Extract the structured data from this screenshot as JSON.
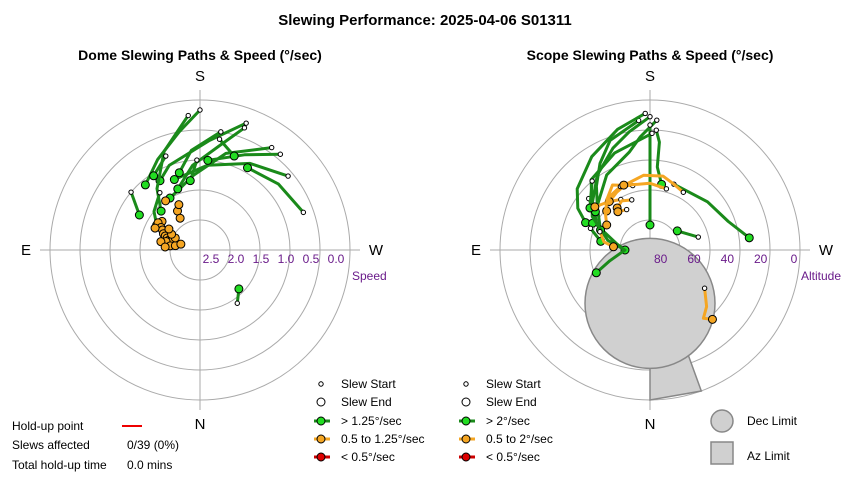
{
  "title": "Slewing Performance: 2025-04-06 S01311",
  "colors": {
    "fast": "#1a8a1a",
    "fast_fill": "#22dd22",
    "mid": "#f5a623",
    "mid_fill": "#f5a623",
    "slow": "#cc0000",
    "slow_fill": "#dd0000",
    "grid": "#aaaaaa",
    "limit_fill": "#d0d0d0",
    "limit_stroke": "#888888",
    "tick": "#6a1b8a",
    "holdup": "#ee0000"
  },
  "dome": {
    "title": "Dome Slewing Paths & Speed (°/sec)",
    "dirs": {
      "top": "S",
      "bottom": "N",
      "left": "E",
      "right": "W"
    },
    "axis_label": "Speed",
    "ticks": [
      {
        "label": "2.5",
        "r": 2.5
      },
      {
        "label": "2.0",
        "r": 2.0
      },
      {
        "label": "1.5",
        "r": 1.5
      },
      {
        "label": "1.0",
        "r": 1.0
      },
      {
        "label": "0.5",
        "r": 0.5
      },
      {
        "label": "0.0",
        "r": 0.0
      }
    ],
    "legend": {
      "start": "Slew Start",
      "end": "Slew End",
      "fast": "> 1.25°/sec",
      "mid": "0.5 to 1.25°/sec",
      "slow": "< 0.5°/sec"
    }
  },
  "scope": {
    "title": "Scope Slewing Paths & Speed (°/sec)",
    "dirs": {
      "top": "S",
      "bottom": "N",
      "left": "E",
      "right": "W"
    },
    "axis_label": "Altitude",
    "ticks": [
      {
        "label": "80",
        "alt": 80
      },
      {
        "label": "60",
        "alt": 60
      },
      {
        "label": "40",
        "alt": 40
      },
      {
        "label": "20",
        "alt": 20
      },
      {
        "label": "0",
        "alt": 0
      }
    ],
    "legend": {
      "start": "Slew Start",
      "end": "Slew End",
      "fast": "> 2°/sec",
      "mid": "0.5 to 2°/sec",
      "slow": "< 0.5°/sec"
    },
    "limits": {
      "dec": "Dec Limit",
      "az": "Az Limit"
    }
  },
  "stats": {
    "holdup_label": "Hold-up point",
    "affected_label": "Slews affected",
    "affected_value": "0/39 (0%)",
    "total_label": "Total hold-up time",
    "total_value": "0.0 mins"
  },
  "chart_data": [
    {
      "type": "scatter",
      "title": "Dome Slewing Paths & Speed (°/sec)",
      "projection": "polar",
      "radial_label": "Speed",
      "radial_range": [
        3.0,
        0.0
      ],
      "compass": [
        "S",
        "W",
        "N",
        "E"
      ],
      "fast_paths": [
        [
          [
            180,
            0.2
          ],
          [
            170,
            0.6
          ],
          [
            155,
            1.0
          ],
          [
            140,
            1.3
          ]
        ],
        [
          [
            200,
            0.3
          ],
          [
            185,
            0.8
          ],
          [
            160,
            1.2
          ],
          [
            150,
            1.4
          ]
        ],
        [
          [
            230,
            0.7
          ],
          [
            210,
            1.0
          ],
          [
            185,
            1.3
          ],
          [
            160,
            1.5
          ]
        ],
        [
          [
            215,
            0.5
          ],
          [
            195,
            1.0
          ],
          [
            175,
            1.5
          ],
          [
            150,
            1.8
          ]
        ],
        [
          [
            200,
            0.4
          ],
          [
            190,
            0.9
          ],
          [
            175,
            1.3
          ],
          [
            160,
            1.7
          ]
        ],
        [
          [
            220,
            0.5
          ],
          [
            205,
            0.9
          ],
          [
            185,
            1.2
          ]
        ],
        [
          [
            250,
            0.8
          ],
          [
            230,
            0.95
          ],
          [
            210,
            1.1
          ]
        ],
        [
          [
            190,
            0.6
          ],
          [
            175,
            1.0
          ],
          [
            165,
            1.4
          ]
        ],
        [
          [
            175,
            0.3
          ],
          [
            160,
            0.9
          ],
          [
            145,
            1.5
          ],
          [
            135,
            1.9
          ]
        ],
        [
          [
            145,
            1.6
          ],
          [
            130,
            1.8
          ],
          [
            120,
            2.0
          ]
        ],
        [
          [
            178,
            1.2
          ],
          [
            172,
            1.6
          ]
        ],
        [
          [
            130,
            1.2
          ],
          [
            120,
            1.6
          ]
        ],
        [
          [
            325,
            1.7
          ],
          [
            315,
            1.9
          ]
        ],
        [
          [
            190,
            0.75
          ],
          [
            200,
            1.0
          ]
        ],
        [
          [
            160,
            1.0
          ],
          [
            148,
            1.25
          ]
        ]
      ],
      "mid_points": [
        [
          127,
          2.05
        ],
        [
          123,
          2.0
        ],
        [
          120,
          2.1
        ],
        [
          118,
          2.15
        ],
        [
          116,
          2.0
        ],
        [
          114,
          2.2
        ],
        [
          112,
          2.25
        ],
        [
          110,
          2.3
        ],
        [
          108,
          2.35
        ],
        [
          113,
          2.4
        ],
        [
          110,
          2.45
        ],
        [
          106,
          2.4
        ],
        [
          104,
          2.3
        ],
        [
          102,
          2.2
        ],
        [
          98,
          2.4
        ],
        [
          100,
          2.5
        ],
        [
          107,
          2.6
        ],
        [
          116,
          2.45
        ],
        [
          119,
          2.35
        ],
        [
          124,
          2.25
        ],
        [
          150,
          2.1
        ],
        [
          148,
          2.25
        ],
        [
          155,
          2.0
        ],
        [
          145,
          1.8
        ],
        [
          95,
          2.3
        ]
      ],
      "slow_paths": []
    },
    {
      "type": "scatter",
      "title": "Scope Slewing Paths & Speed (°/sec)",
      "projection": "polar",
      "radial_label": "Altitude",
      "radial_range": [
        90,
        0
      ],
      "compass": [
        "S",
        "W",
        "N",
        "E"
      ],
      "fast_paths": [
        [
          [
            180,
            10
          ],
          [
            170,
            18
          ],
          [
            160,
            25
          ],
          [
            145,
            35
          ],
          [
            130,
            45
          ],
          [
            115,
            55
          ],
          [
            100,
            70
          ],
          [
            90,
            75
          ]
        ],
        [
          [
            175,
            12
          ],
          [
            160,
            20
          ],
          [
            150,
            30
          ],
          [
            140,
            40
          ],
          [
            128,
            50
          ],
          [
            112,
            58
          ]
        ],
        [
          [
            178,
            8
          ],
          [
            165,
            15
          ],
          [
            148,
            24
          ],
          [
            130,
            33
          ],
          [
            120,
            40
          ],
          [
            113,
            48
          ]
        ],
        [
          [
            183,
            12
          ],
          [
            175,
            22
          ],
          [
            168,
            30
          ],
          [
            150,
            38
          ],
          [
            132,
            48
          ],
          [
            115,
            52
          ]
        ],
        [
          [
            180,
            15
          ],
          [
            180,
            30
          ],
          [
            180,
            45
          ],
          [
            180,
            60
          ],
          [
            180,
            75
          ]
        ],
        [
          [
            183,
            18
          ],
          [
            185,
            25
          ],
          [
            185,
            40
          ],
          [
            190,
            50
          ]
        ],
        [
          [
            181,
            20
          ],
          [
            160,
            28
          ],
          [
            140,
            35
          ],
          [
            120,
            50
          ],
          [
            103,
            64
          ],
          [
            90,
            75
          ],
          [
            75,
            65
          ],
          [
            67,
            55
          ]
        ],
        [
          [
            200,
            48
          ],
          [
            230,
            45
          ],
          [
            250,
            40
          ],
          [
            263,
            30
          ]
        ],
        [
          [
            130,
            42
          ],
          [
            125,
            50
          ]
        ],
        [
          [
            255,
            60
          ],
          [
            235,
            70
          ]
        ],
        [
          [
            110,
            52
          ],
          [
            100,
            60
          ]
        ],
        [
          [
            140,
            36
          ],
          [
            125,
            46
          ]
        ]
      ],
      "mid_paths": [
        [
          [
            150,
            55
          ],
          [
            140,
            52
          ],
          [
            128,
            48
          ]
        ],
        [
          [
            165,
            50
          ],
          [
            150,
            45
          ],
          [
            140,
            50
          ],
          [
            132,
            55
          ]
        ],
        [
          [
            210,
            50
          ],
          [
            200,
            48
          ],
          [
            190,
            45
          ],
          [
            175,
            45
          ],
          [
            160,
            48
          ],
          [
            150,
            50
          ],
          [
            140,
            52
          ]
        ],
        [
          [
            155,
            48
          ],
          [
            140,
            50
          ],
          [
            130,
            55
          ],
          [
            120,
            60
          ]
        ],
        [
          [
            195,
            52
          ],
          [
            180,
            50
          ],
          [
            170,
            50
          ],
          [
            158,
            48
          ]
        ],
        [
          [
            160,
            58
          ],
          [
            150,
            56
          ],
          [
            142,
            58
          ]
        ],
        [
          [
            305,
            50
          ],
          [
            315,
            42
          ],
          [
            322,
            38
          ],
          [
            318,
            34
          ]
        ],
        [
          [
            110,
            58
          ],
          [
            100,
            62
          ],
          [
            95,
            68
          ]
        ],
        [
          [
            150,
            62
          ],
          [
            140,
            60
          ]
        ]
      ],
      "slow_paths": [],
      "dec_limit_center": [
        0,
        58
      ],
      "dec_limit_radius_alt": 15,
      "az_limit_wedge_az": [
        340,
        360
      ],
      "az_limit_alt_range": [
        0,
        45
      ]
    }
  ]
}
